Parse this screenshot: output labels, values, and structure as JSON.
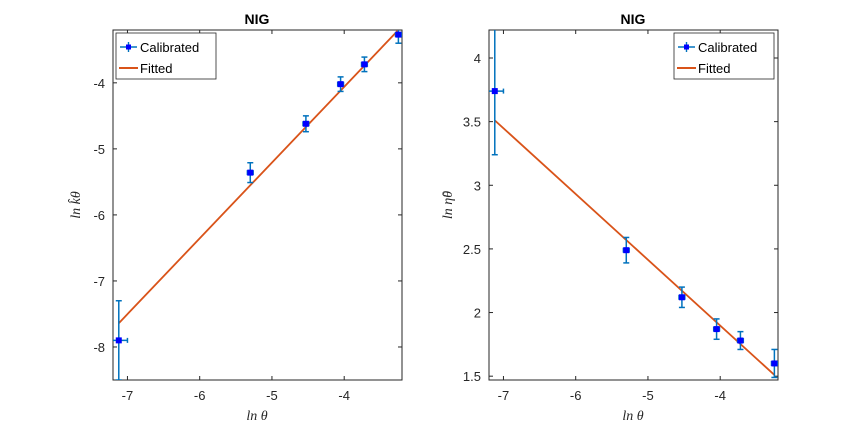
{
  "chart_data": [
    {
      "type": "scatter",
      "title": "NIG",
      "xlabel": "ln θ",
      "ylabel": "ln k̂θ",
      "xlim": [
        -7.2,
        -3.2
      ],
      "ylim": [
        -8.5,
        -3.2
      ],
      "xticks": [
        -7,
        -6,
        -5,
        -4
      ],
      "yticks": [
        -8,
        -7,
        -6,
        -5,
        -4
      ],
      "tick_labels_x": [
        "-7",
        "-6",
        "-5",
        "-4"
      ],
      "tick_labels_y": [
        "-8",
        "-7",
        "-6",
        "-5",
        "-4"
      ],
      "legend": {
        "position": "top-left",
        "entries": [
          "Calibrated",
          "Fitted"
        ]
      },
      "series": [
        {
          "name": "Calibrated",
          "marker": "filled-square",
          "color": "#0000ff",
          "errorbar_color": "#0072bd",
          "points": [
            {
              "x": -7.12,
              "y": -7.9,
              "yerr": 0.6,
              "xerr": 0.12
            },
            {
              "x": -5.3,
              "y": -5.36,
              "yerr": 0.15,
              "xerr": 0.04
            },
            {
              "x": -4.53,
              "y": -4.62,
              "yerr": 0.12,
              "xerr": 0.04
            },
            {
              "x": -4.05,
              "y": -4.02,
              "yerr": 0.11,
              "xerr": 0.04
            },
            {
              "x": -3.72,
              "y": -3.72,
              "yerr": 0.11,
              "xerr": 0.04
            },
            {
              "x": -3.25,
              "y": -3.27,
              "yerr": 0.13,
              "xerr": 0.04
            }
          ]
        },
        {
          "name": "Fitted",
          "type": "line",
          "color": "#d95319",
          "points": [
            {
              "x": -7.12,
              "y": -7.64
            },
            {
              "x": -3.25,
              "y": -3.2
            }
          ]
        }
      ]
    },
    {
      "type": "scatter",
      "title": "NIG",
      "xlabel": "ln θ",
      "ylabel": "ln η̂θ",
      "xlim": [
        -7.2,
        -3.2
      ],
      "ylim": [
        1.47,
        4.22
      ],
      "xticks": [
        -7,
        -6,
        -5,
        -4
      ],
      "yticks": [
        1.5,
        2,
        2.5,
        3,
        3.5,
        4
      ],
      "tick_labels_x": [
        "-7",
        "-6",
        "-5",
        "-4"
      ],
      "tick_labels_y": [
        "1.5",
        "2",
        "2.5",
        "3",
        "3.5",
        "4"
      ],
      "legend": {
        "position": "top-right",
        "entries": [
          "Calibrated",
          "Fitted"
        ]
      },
      "series": [
        {
          "name": "Calibrated",
          "marker": "filled-square",
          "color": "#0000ff",
          "errorbar_color": "#0072bd",
          "points": [
            {
              "x": -7.12,
              "y": 3.74,
              "yerr": 0.5,
              "xerr": 0.12
            },
            {
              "x": -5.3,
              "y": 2.49,
              "yerr": 0.1,
              "xerr": 0.04
            },
            {
              "x": -4.53,
              "y": 2.12,
              "yerr": 0.08,
              "xerr": 0.04
            },
            {
              "x": -4.05,
              "y": 1.87,
              "yerr": 0.08,
              "xerr": 0.04
            },
            {
              "x": -3.72,
              "y": 1.78,
              "yerr": 0.07,
              "xerr": 0.04
            },
            {
              "x": -3.25,
              "y": 1.6,
              "yerr": 0.11,
              "xerr": 0.04
            }
          ]
        },
        {
          "name": "Fitted",
          "type": "line",
          "color": "#d95319",
          "points": [
            {
              "x": -7.12,
              "y": 3.51
            },
            {
              "x": -3.25,
              "y": 1.51
            }
          ]
        }
      ]
    }
  ]
}
